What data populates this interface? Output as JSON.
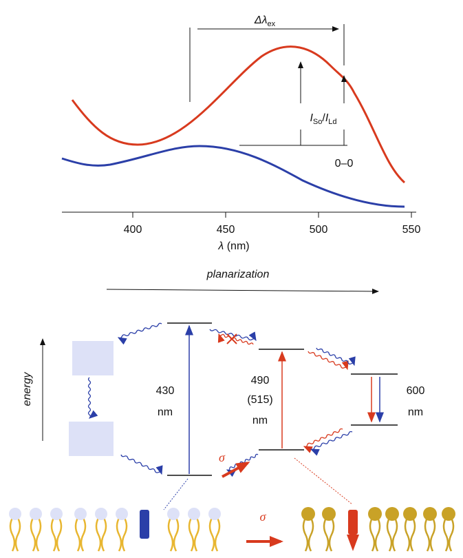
{
  "spectrum": {
    "delta_label": {
      "symbol": "Δλ",
      "sub": "ex"
    },
    "ratio_label": {
      "numerator": "I",
      "numerator_sub": "So",
      "separator": "/",
      "denominator": "I",
      "denominator_sub": "Ld"
    },
    "zero_zero": "0–0",
    "x_ticks": [
      400,
      450,
      500,
      550
    ],
    "x_label": {
      "symbol": "λ",
      "unit": " (nm)"
    }
  },
  "diagram": {
    "planarization": "planarization",
    "energy": "energy",
    "transitions": [
      {
        "lines": [
          "430",
          "nm"
        ]
      },
      {
        "lines": [
          "490",
          "(515)",
          "nm"
        ]
      },
      {
        "lines": [
          "600",
          "nm"
        ]
      }
    ],
    "sigma_labels": [
      "σ",
      "σ"
    ]
  }
}
